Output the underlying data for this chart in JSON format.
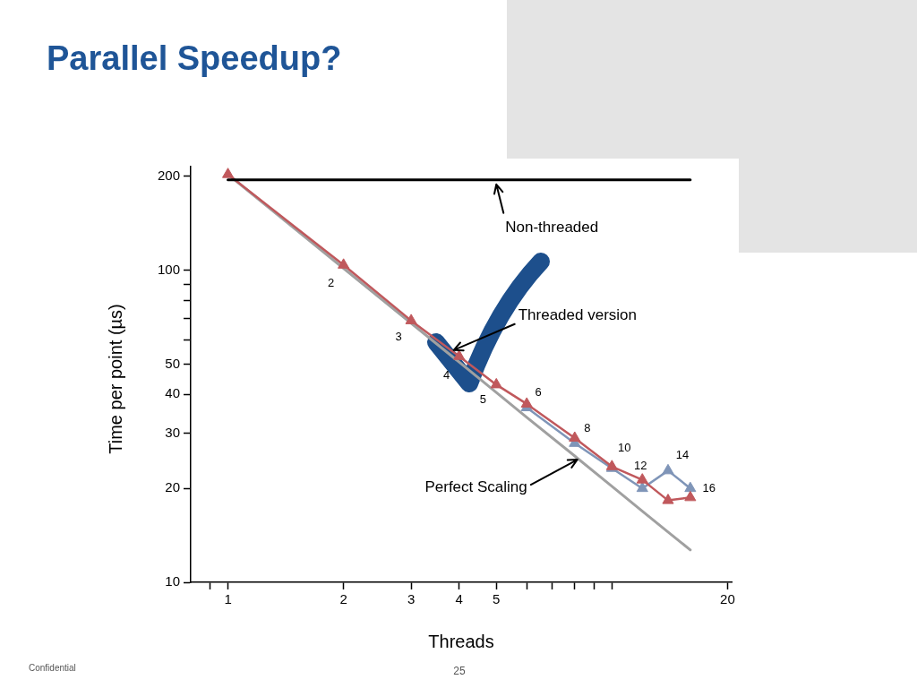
{
  "chart_data": {
    "type": "line",
    "title": "Parallel Speedup?",
    "xlabel": "Threads",
    "ylabel": "Time per point (µs)",
    "log": "xy",
    "marker": "triangle",
    "xlim": [
      0.8,
      20.5
    ],
    "xticks": [
      {
        "value": 0.9,
        "label": null
      },
      1,
      2,
      3,
      4,
      5,
      {
        "value": 6,
        "label": null
      },
      {
        "value": 7,
        "label": null
      },
      {
        "value": 8,
        "label": null
      },
      {
        "value": 9,
        "label": null
      },
      {
        "value": 10,
        "label": null
      },
      20
    ],
    "ylim": [
      10,
      215
    ],
    "yticks": [
      10,
      20,
      30,
      40,
      50,
      {
        "value": 60,
        "label": null
      },
      {
        "value": 70,
        "label": null
      },
      {
        "value": 80,
        "label": null
      },
      {
        "value": 90,
        "label": null
      },
      100,
      200
    ],
    "series": [
      {
        "x": [
          1,
          16
        ],
        "values": [
          195,
          195
        ],
        "color": "#000000",
        "marker": "none"
      },
      {
        "x": [
          1,
          2,
          3,
          4,
          5,
          6,
          8,
          10,
          12,
          14,
          16
        ],
        "values": [
          203,
          104,
          69,
          53,
          43,
          37.3,
          29,
          23.5,
          21.3,
          18.3,
          18.7
        ],
        "color": "#c0585c"
      },
      {
        "x": [
          6,
          8,
          10,
          12,
          14,
          16
        ],
        "values": [
          36.3,
          27.9,
          23.2,
          20,
          22.8,
          20
        ],
        "color": "#7f95b8"
      },
      {
        "x": [
          1,
          2,
          3,
          4,
          5,
          6,
          8,
          10,
          12,
          14,
          16
        ],
        "values": [
          203,
          101.5,
          67.7,
          50.8,
          40.6,
          33.8,
          25.4,
          20.3,
          16.9,
          14.5,
          12.7
        ],
        "color": "#a0a0a0",
        "marker": "none"
      }
    ],
    "annotations": [
      {
        "text": "Non-threaded",
        "x": 5,
        "y": 195
      },
      {
        "text": "Threaded version",
        "x": 4,
        "y": 53
      },
      {
        "text": "Perfect Scaling",
        "x": 8,
        "y": 25.4
      },
      {
        "text": "2",
        "x": 2,
        "y": 104
      },
      {
        "text": "3",
        "x": 3,
        "y": 69
      },
      {
        "text": "4",
        "x": 4,
        "y": 53
      },
      {
        "text": "5",
        "x": 5,
        "y": 43
      },
      {
        "text": "6",
        "x": 6,
        "y": 37.3
      },
      {
        "text": "8",
        "x": 8,
        "y": 29
      },
      {
        "text": "10",
        "x": 10,
        "y": 23.5
      },
      {
        "text": "12",
        "x": 12,
        "y": 21.3
      },
      {
        "text": "14",
        "x": 14,
        "y": 22.8
      },
      {
        "text": "16",
        "x": 16,
        "y": 20
      },
      "Confidential",
      "25"
    ]
  }
}
